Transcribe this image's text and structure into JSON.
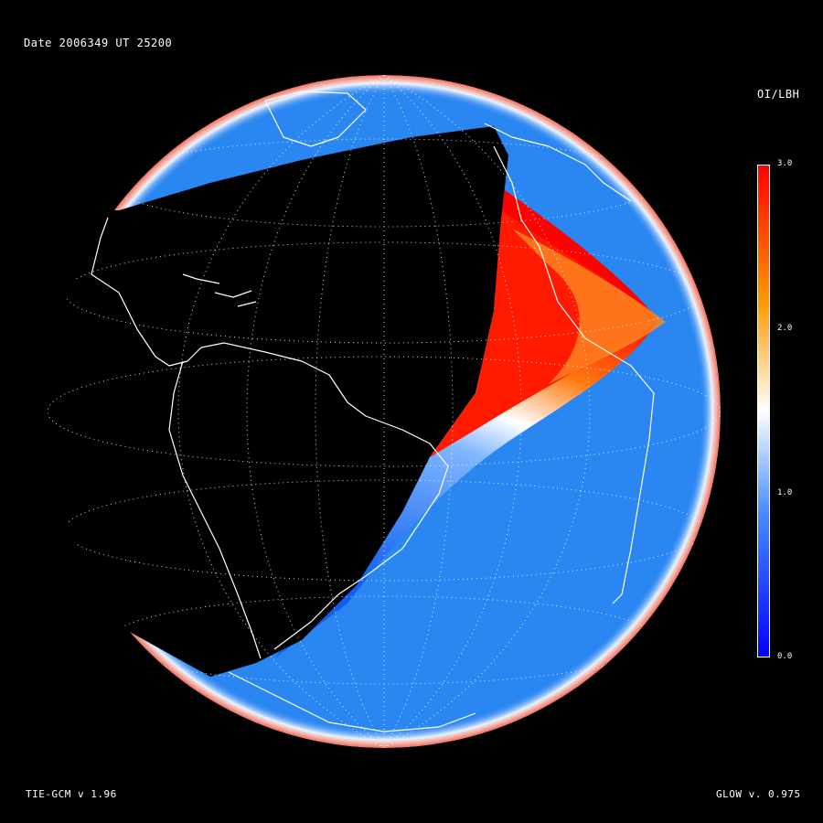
{
  "header": {
    "date_label": "Date 2006349  UT 25200"
  },
  "footer": {
    "model_label": "TIE-GCM v 1.96",
    "glow_label": "GLOW v. 0.975"
  },
  "colorbar": {
    "title": "OI/LBH",
    "ticks": [
      "3.0",
      "2.0",
      "1.0",
      "0.0"
    ],
    "range": [
      0.0,
      3.0
    ],
    "colors": {
      "low": "#0000ff",
      "mid": "#ffffff",
      "high_mid": "#ff9900",
      "high": "#ff0000"
    }
  },
  "colors": {
    "background": "#000000",
    "coastline": "#ffffff",
    "graticule": "#ffffff"
  }
}
